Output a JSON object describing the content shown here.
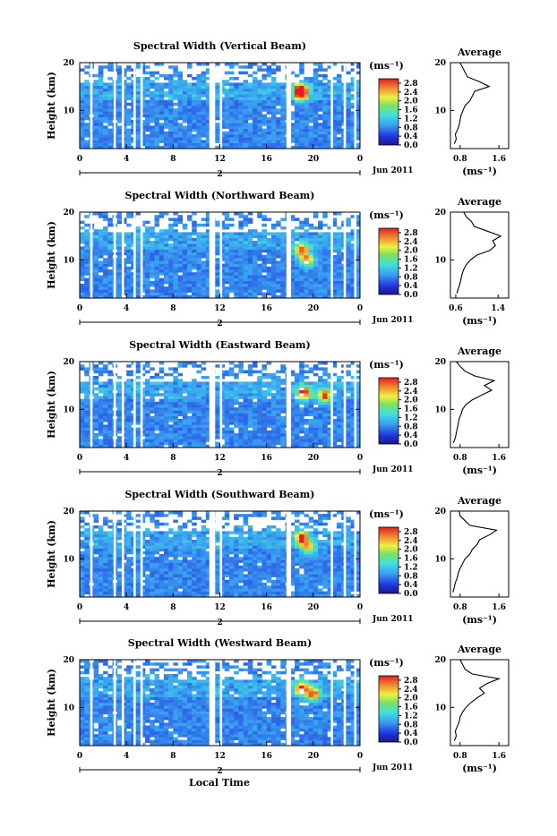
{
  "figure": {
    "x_axis_label": "Local Time",
    "date_label": "Jun 2011",
    "day_marker": "2",
    "height_label": "Height (km)",
    "unit_label": "(ms⁻¹)",
    "average_title": "Average",
    "colorbar_ticks": [
      "2.8",
      "2.4",
      "2.0",
      "1.6",
      "1.2",
      "0.8",
      "0.4",
      "0.0"
    ]
  },
  "chart_data": [
    {
      "type": "heatmap",
      "title": "Spectral Width (Vertical Beam)",
      "xlabel": "",
      "ylabel": "Height (km)",
      "x_ticks": [
        "0",
        "4",
        "8",
        "12",
        "16",
        "20",
        "0"
      ],
      "y_ticks": [
        "20",
        "10"
      ],
      "xlim": [
        0,
        24
      ],
      "ylim": [
        2,
        20
      ],
      "colorbar_range": [
        0,
        3
      ],
      "highlights": [
        {
          "t": 19.0,
          "h": 13.5,
          "v": 2.8
        },
        {
          "t": 18.8,
          "h": 14.5,
          "v": 2.4
        }
      ],
      "average": {
        "title": "Average",
        "xlabel": "(ms⁻¹)",
        "x_ticks": [
          "0.8",
          "1.6"
        ],
        "xlim": [
          0.6,
          1.8
        ],
        "height": [
          3,
          4,
          5,
          6,
          7,
          8,
          9,
          10,
          11,
          12,
          13,
          14,
          15,
          16,
          17,
          18,
          19,
          20
        ],
        "width": [
          0.68,
          0.72,
          0.7,
          0.75,
          0.78,
          0.8,
          0.82,
          0.86,
          0.9,
          1.0,
          1.05,
          1.1,
          1.4,
          1.2,
          0.95,
          0.9,
          0.85,
          0.8
        ]
      }
    },
    {
      "type": "heatmap",
      "title": "Spectral Width (Northward Beam)",
      "xlabel": "",
      "ylabel": "Height (km)",
      "x_ticks": [
        "0",
        "4",
        "8",
        "12",
        "16",
        "20",
        "0"
      ],
      "y_ticks": [
        "20",
        "10"
      ],
      "xlim": [
        0,
        24
      ],
      "ylim": [
        2,
        20
      ],
      "colorbar_range": [
        0,
        3
      ],
      "highlights": [
        {
          "t": 19.0,
          "h": 12.0,
          "v": 2.6
        },
        {
          "t": 19.5,
          "h": 10.0,
          "v": 2.2
        }
      ],
      "average": {
        "title": "Average",
        "xlabel": "(ms⁻¹)",
        "x_ticks": [
          "0.6",
          "1.4"
        ],
        "xlim": [
          0.5,
          1.6
        ],
        "height": [
          3,
          4,
          5,
          6,
          7,
          8,
          9,
          10,
          11,
          12,
          13,
          14,
          15,
          16,
          17,
          18,
          19,
          20
        ],
        "width": [
          0.62,
          0.65,
          0.68,
          0.7,
          0.72,
          0.75,
          0.8,
          0.88,
          1.0,
          1.25,
          1.35,
          1.3,
          1.45,
          1.2,
          0.95,
          0.9,
          0.8,
          0.75
        ]
      }
    },
    {
      "type": "heatmap",
      "title": "Spectral Width (Eastward Beam)",
      "xlabel": "",
      "ylabel": "Height (km)",
      "x_ticks": [
        "0",
        "4",
        "8",
        "12",
        "16",
        "20",
        "0"
      ],
      "y_ticks": [
        "20",
        "10"
      ],
      "xlim": [
        0,
        24
      ],
      "ylim": [
        2,
        20
      ],
      "colorbar_range": [
        0,
        3
      ],
      "highlights": [
        {
          "t": 19.2,
          "h": 13.5,
          "v": 2.8
        },
        {
          "t": 21.0,
          "h": 13.0,
          "v": 2.6
        }
      ],
      "average": {
        "title": "Average",
        "xlabel": "(ms⁻¹)",
        "x_ticks": [
          "0.8",
          "1.6"
        ],
        "xlim": [
          0.6,
          1.8
        ],
        "height": [
          3,
          4,
          5,
          6,
          7,
          8,
          9,
          10,
          11,
          12,
          13,
          14,
          15,
          16,
          17,
          18,
          19,
          20
        ],
        "width": [
          0.66,
          0.7,
          0.72,
          0.74,
          0.76,
          0.78,
          0.82,
          0.85,
          0.92,
          1.05,
          1.25,
          1.45,
          1.3,
          1.5,
          1.1,
          0.9,
          0.8,
          0.72
        ]
      }
    },
    {
      "type": "heatmap",
      "title": "Spectral Width (Southward Beam)",
      "xlabel": "",
      "ylabel": "Height (km)",
      "x_ticks": [
        "0",
        "4",
        "8",
        "12",
        "16",
        "20",
        "0"
      ],
      "y_ticks": [
        "20",
        "10"
      ],
      "xlim": [
        0,
        24
      ],
      "ylim": [
        2,
        20
      ],
      "colorbar_range": [
        0,
        3
      ],
      "highlights": [
        {
          "t": 19.0,
          "h": 14.5,
          "v": 2.8
        },
        {
          "t": 19.6,
          "h": 12.5,
          "v": 2.2
        }
      ],
      "average": {
        "title": "Average",
        "xlabel": "(ms⁻¹)",
        "x_ticks": [
          "0.8",
          "1.6"
        ],
        "xlim": [
          0.6,
          1.8
        ],
        "height": [
          3,
          4,
          5,
          6,
          7,
          8,
          9,
          10,
          11,
          12,
          13,
          14,
          15,
          16,
          17,
          18,
          19,
          20
        ],
        "width": [
          0.65,
          0.68,
          0.7,
          0.74,
          0.76,
          0.8,
          0.85,
          0.9,
          1.0,
          1.05,
          1.15,
          1.2,
          1.4,
          1.55,
          1.0,
          0.9,
          0.8,
          0.78
        ]
      }
    },
    {
      "type": "heatmap",
      "title": "Spectral Width (Westward Beam)",
      "xlabel": "Local Time",
      "ylabel": "Height (km)",
      "x_ticks": [
        "0",
        "4",
        "8",
        "12",
        "16",
        "20",
        "0"
      ],
      "y_ticks": [
        "20",
        "10"
      ],
      "xlim": [
        0,
        24
      ],
      "ylim": [
        2,
        20
      ],
      "colorbar_range": [
        0,
        3
      ],
      "highlights": [
        {
          "t": 19.0,
          "h": 14.0,
          "v": 2.8
        },
        {
          "t": 20.0,
          "h": 12.8,
          "v": 2.4
        }
      ],
      "average": {
        "title": "Average",
        "xlabel": "(ms⁻¹)",
        "x_ticks": [
          "0.8",
          "1.6"
        ],
        "xlim": [
          0.6,
          1.8
        ],
        "height": [
          3,
          4,
          5,
          6,
          7,
          8,
          9,
          10,
          11,
          12,
          13,
          14,
          15,
          16,
          17,
          18,
          19,
          20
        ],
        "width": [
          0.68,
          0.72,
          0.7,
          0.74,
          0.78,
          0.8,
          0.85,
          0.92,
          1.02,
          1.15,
          1.3,
          1.2,
          1.35,
          1.6,
          1.05,
          0.9,
          0.85,
          0.8
        ]
      }
    }
  ]
}
